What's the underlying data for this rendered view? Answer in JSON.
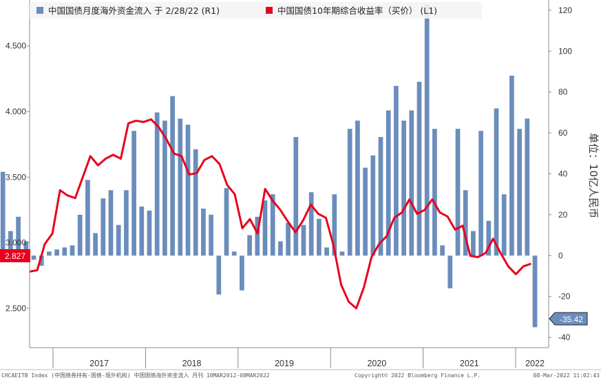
{
  "chart_data": {
    "type": "bar+line",
    "legend": [
      {
        "name": "中国国债月度海外资金流入 于 2/28/22 (R1)",
        "color": "#6a8dbc"
      },
      {
        "name": "中国国债10年期综合收益率（买价）  (L1)",
        "color": "#e8001c"
      }
    ],
    "legend_position": "top-left",
    "x_years": [
      "2017",
      "2018",
      "2019",
      "2020",
      "2021",
      "2022"
    ],
    "left_axis": {
      "range": [
        2.2,
        4.85
      ],
      "ticks": [
        "2.500",
        "3.000",
        "3.500",
        "4.000",
        "4.500"
      ],
      "tick_values": [
        2.5,
        3.0,
        3.5,
        4.0,
        4.5
      ]
    },
    "right_axis": {
      "range": [
        -45,
        125
      ],
      "ticks": [
        "-40",
        "-20",
        "0",
        "20",
        "40",
        "60",
        "80",
        "100",
        "120"
      ],
      "tick_values": [
        -40,
        -20,
        0,
        20,
        40,
        60,
        80,
        100,
        120
      ],
      "label": "单位：10亿人民币"
    },
    "months_start": "2016-06",
    "bars": [
      41,
      12,
      19,
      7,
      -2,
      -5,
      2,
      3,
      4,
      5,
      20,
      37,
      11,
      28,
      32,
      15,
      32,
      61,
      24,
      22,
      70,
      66,
      78,
      67,
      64,
      52,
      23,
      20,
      -19,
      33,
      2,
      -17,
      10,
      19,
      27,
      30,
      7,
      16,
      58,
      15,
      31,
      18,
      4,
      30,
      2,
      62,
      66,
      43,
      49,
      58,
      71,
      83,
      66,
      71,
      85,
      123,
      62,
      5,
      -16,
      62,
      32,
      12,
      61,
      17,
      72,
      30,
      88,
      62,
      67,
      -35
    ],
    "bars_series_name": "中国国债月度海外资金流入 于 2/28/22 (R1)",
    "line": [
      2.78,
      2.79,
      2.99,
      3.07,
      3.4,
      3.36,
      3.34,
      3.5,
      3.66,
      3.59,
      3.64,
      3.67,
      3.64,
      3.91,
      3.93,
      3.92,
      3.94,
      3.88,
      3.79,
      3.68,
      3.66,
      3.52,
      3.53,
      3.63,
      3.66,
      3.6,
      3.44,
      3.37,
      3.11,
      3.18,
      3.07,
      3.41,
      3.32,
      3.25,
      3.16,
      3.08,
      3.17,
      3.29,
      3.22,
      3.19,
      2.98,
      2.68,
      2.55,
      2.5,
      2.66,
      2.89,
      2.99,
      3.05,
      3.19,
      3.23,
      3.33,
      3.22,
      3.25,
      3.33,
      3.23,
      3.2,
      3.1,
      3.13,
      2.9,
      2.89,
      2.92,
      3.03,
      2.92,
      2.82,
      2.76,
      2.82,
      2.84
    ],
    "line_series_name": "中国国债10年期综合收益率（买价）  (L1)",
    "last_values": {
      "left": "2.827",
      "right": "-35.42"
    },
    "grid": false
  },
  "footer": {
    "left": "CHCAEITB Index (中国债券持有-国债-境外机构) 中国国债海外资金流入  月刊 10MAR2012-08MAR2022",
    "center": "Copyright© 2022 Bloomberg Finance L.P.",
    "right": "08-Mar-2022 11:02:43"
  },
  "colors": {
    "bar": "#6a8dbc",
    "line": "#e8001c",
    "badge_left_bg": "#e8001c",
    "badge_right_bg": "#6a8dbc"
  }
}
